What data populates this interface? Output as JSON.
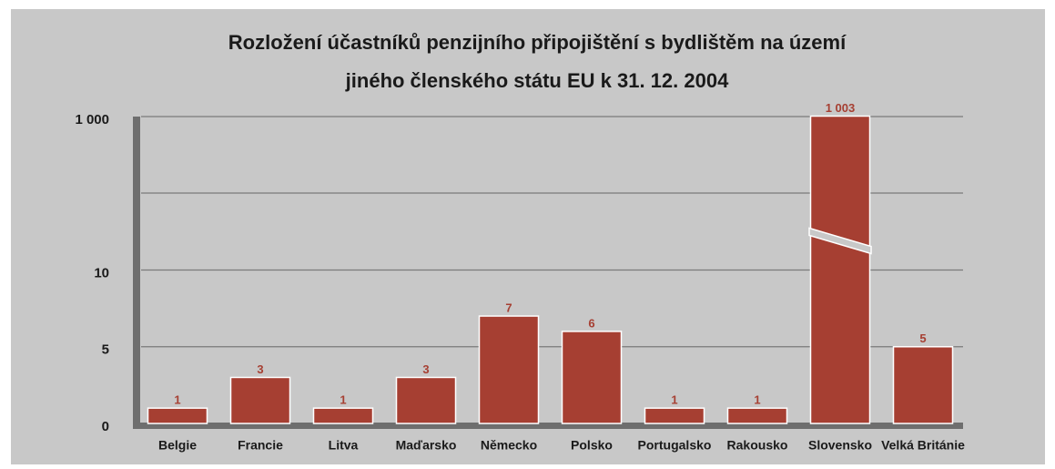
{
  "chart_data": {
    "type": "bar",
    "title": [
      "Rozložení účastníků penzijního připojištění s bydlištěm na území",
      "jiného členského státu EU k 31. 12. 2004"
    ],
    "categories": [
      "Belgie",
      "Francie",
      "Litva",
      "Maďarsko",
      "Německo",
      "Polsko",
      "Portugalsko",
      "Rakousko",
      "Slovensko",
      "Velká Británie"
    ],
    "values": [
      1,
      3,
      1,
      3,
      7,
      6,
      1,
      1,
      1003,
      5
    ],
    "value_labels": [
      "1",
      "3",
      "1",
      "3",
      "7",
      "6",
      "1",
      "1",
      "1 003",
      "5"
    ],
    "color": "#a63f32",
    "ylim": [
      0,
      1000
    ],
    "yticks": [
      0,
      5,
      10,
      {
        "value": 1000,
        "label": "1 000"
      }
    ],
    "axis_break": true,
    "grid": true
  }
}
